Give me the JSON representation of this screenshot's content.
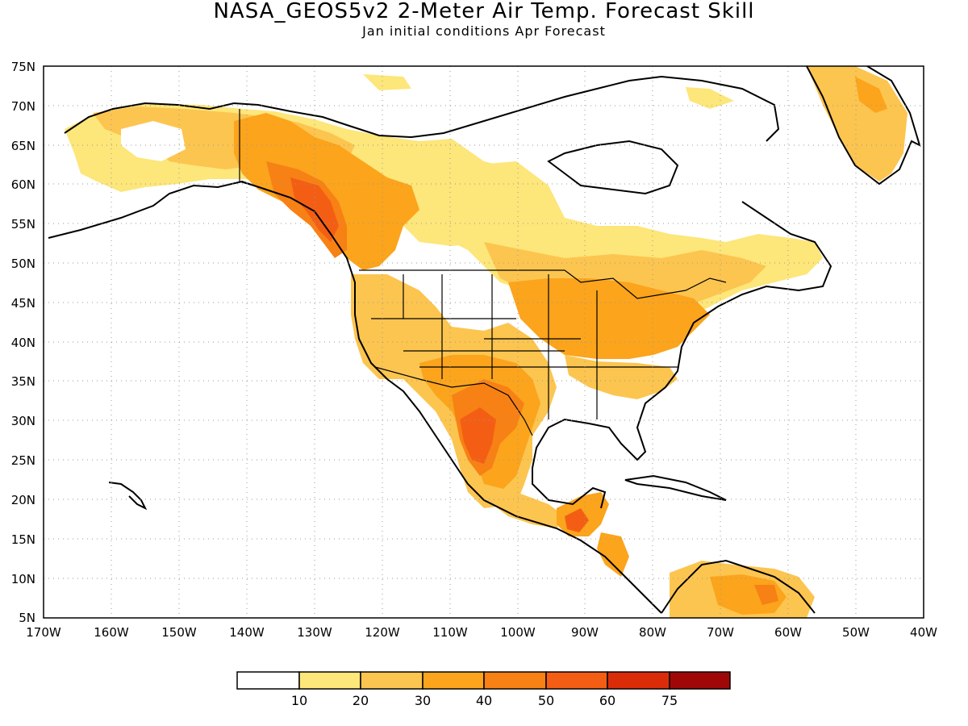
{
  "title": "NASA_GEOS5v2 2-Meter Air Temp. Forecast Skill",
  "subtitle": "Jan initial conditions  Apr Forecast",
  "map": {
    "lon_range": [
      -170,
      -40
    ],
    "lat_range": [
      5,
      75
    ],
    "lat_ticks": [
      "75N",
      "70N",
      "65N",
      "60N",
      "55N",
      "50N",
      "45N",
      "40N",
      "35N",
      "30N",
      "25N",
      "20N",
      "15N",
      "10N",
      "5N"
    ],
    "lon_ticks": [
      "170W",
      "160W",
      "150W",
      "140W",
      "130W",
      "120W",
      "110W",
      "100W",
      "90W",
      "80W",
      "70W",
      "60W",
      "50W",
      "40W"
    ],
    "grid": "dotted"
  },
  "legend": {
    "colors": [
      "#ffffff",
      "#fde67a",
      "#fcc550",
      "#fba41c",
      "#f78114",
      "#f45e14",
      "#db2c0a",
      "#a00808"
    ],
    "labels": [
      "10",
      "20",
      "30",
      "40",
      "50",
      "60",
      "75"
    ]
  }
}
